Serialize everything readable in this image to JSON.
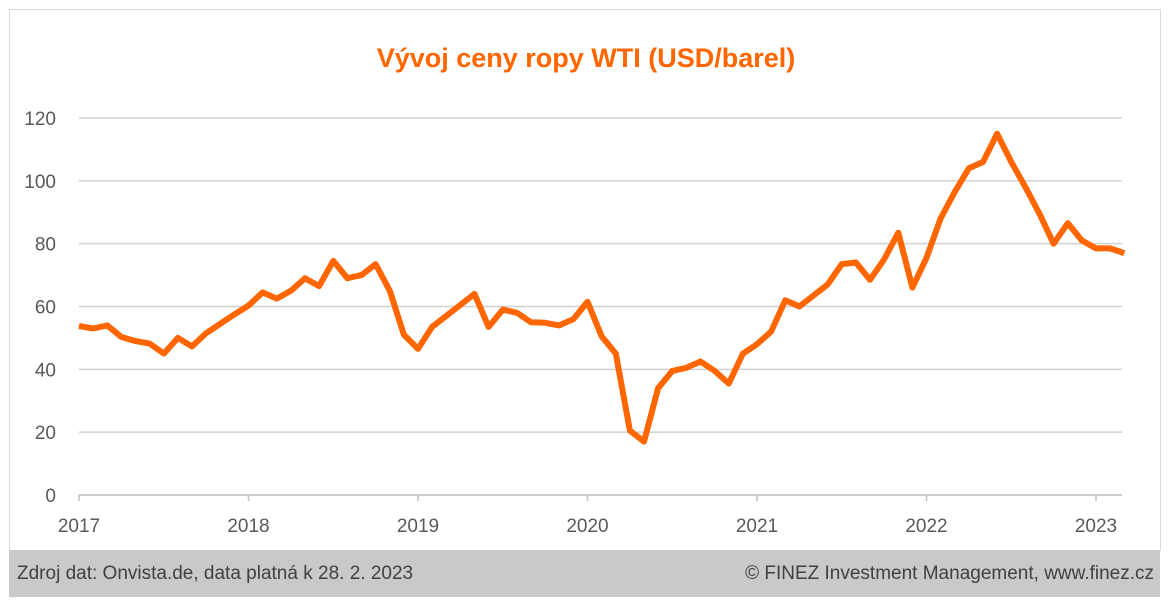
{
  "chart_data": {
    "type": "line",
    "title": "Vývoj ceny ropy WTI (USD/barel)",
    "xlabel": "",
    "ylabel": "",
    "ylim": [
      0,
      120
    ],
    "yticks": [
      "0",
      "20",
      "40",
      "60",
      "80",
      "100",
      "120"
    ],
    "xticks": [
      "2017",
      "2018",
      "2019",
      "2020",
      "2021",
      "2022",
      "2023"
    ],
    "x_start": "2017-01",
    "x_step": "month",
    "grid": true,
    "legend": "none",
    "color": "#FF6600",
    "series": [
      {
        "name": "WTI",
        "values": [
          53.8,
          53,
          54,
          50.3,
          49,
          48.2,
          45,
          50,
          47.3,
          51.5,
          54.5,
          57.5,
          60.3,
          64.5,
          62.5,
          65,
          69,
          66.5,
          74.5,
          69,
          70,
          73.5,
          65,
          51,
          46.5,
          53.5,
          57,
          60.5,
          64,
          53.5,
          59,
          58,
          55,
          54.8,
          54,
          56,
          61.5,
          50.5,
          45,
          20.5,
          17,
          34,
          39.5,
          40.5,
          42.5,
          39.5,
          35.5,
          45,
          48,
          52,
          62,
          60,
          63.5,
          67,
          73.5,
          74,
          68.5,
          75,
          83.5,
          66,
          75.5,
          88,
          96.5,
          104,
          106,
          115,
          106,
          98,
          89.5,
          80,
          86.5,
          81,
          78.5,
          78.5,
          77
        ]
      }
    ]
  },
  "footer": {
    "source": "Zdroj dat: Onvista.de, data platná k 28. 2. 2023",
    "copyright": "© FINEZ Investment Management, www.finez.cz"
  }
}
